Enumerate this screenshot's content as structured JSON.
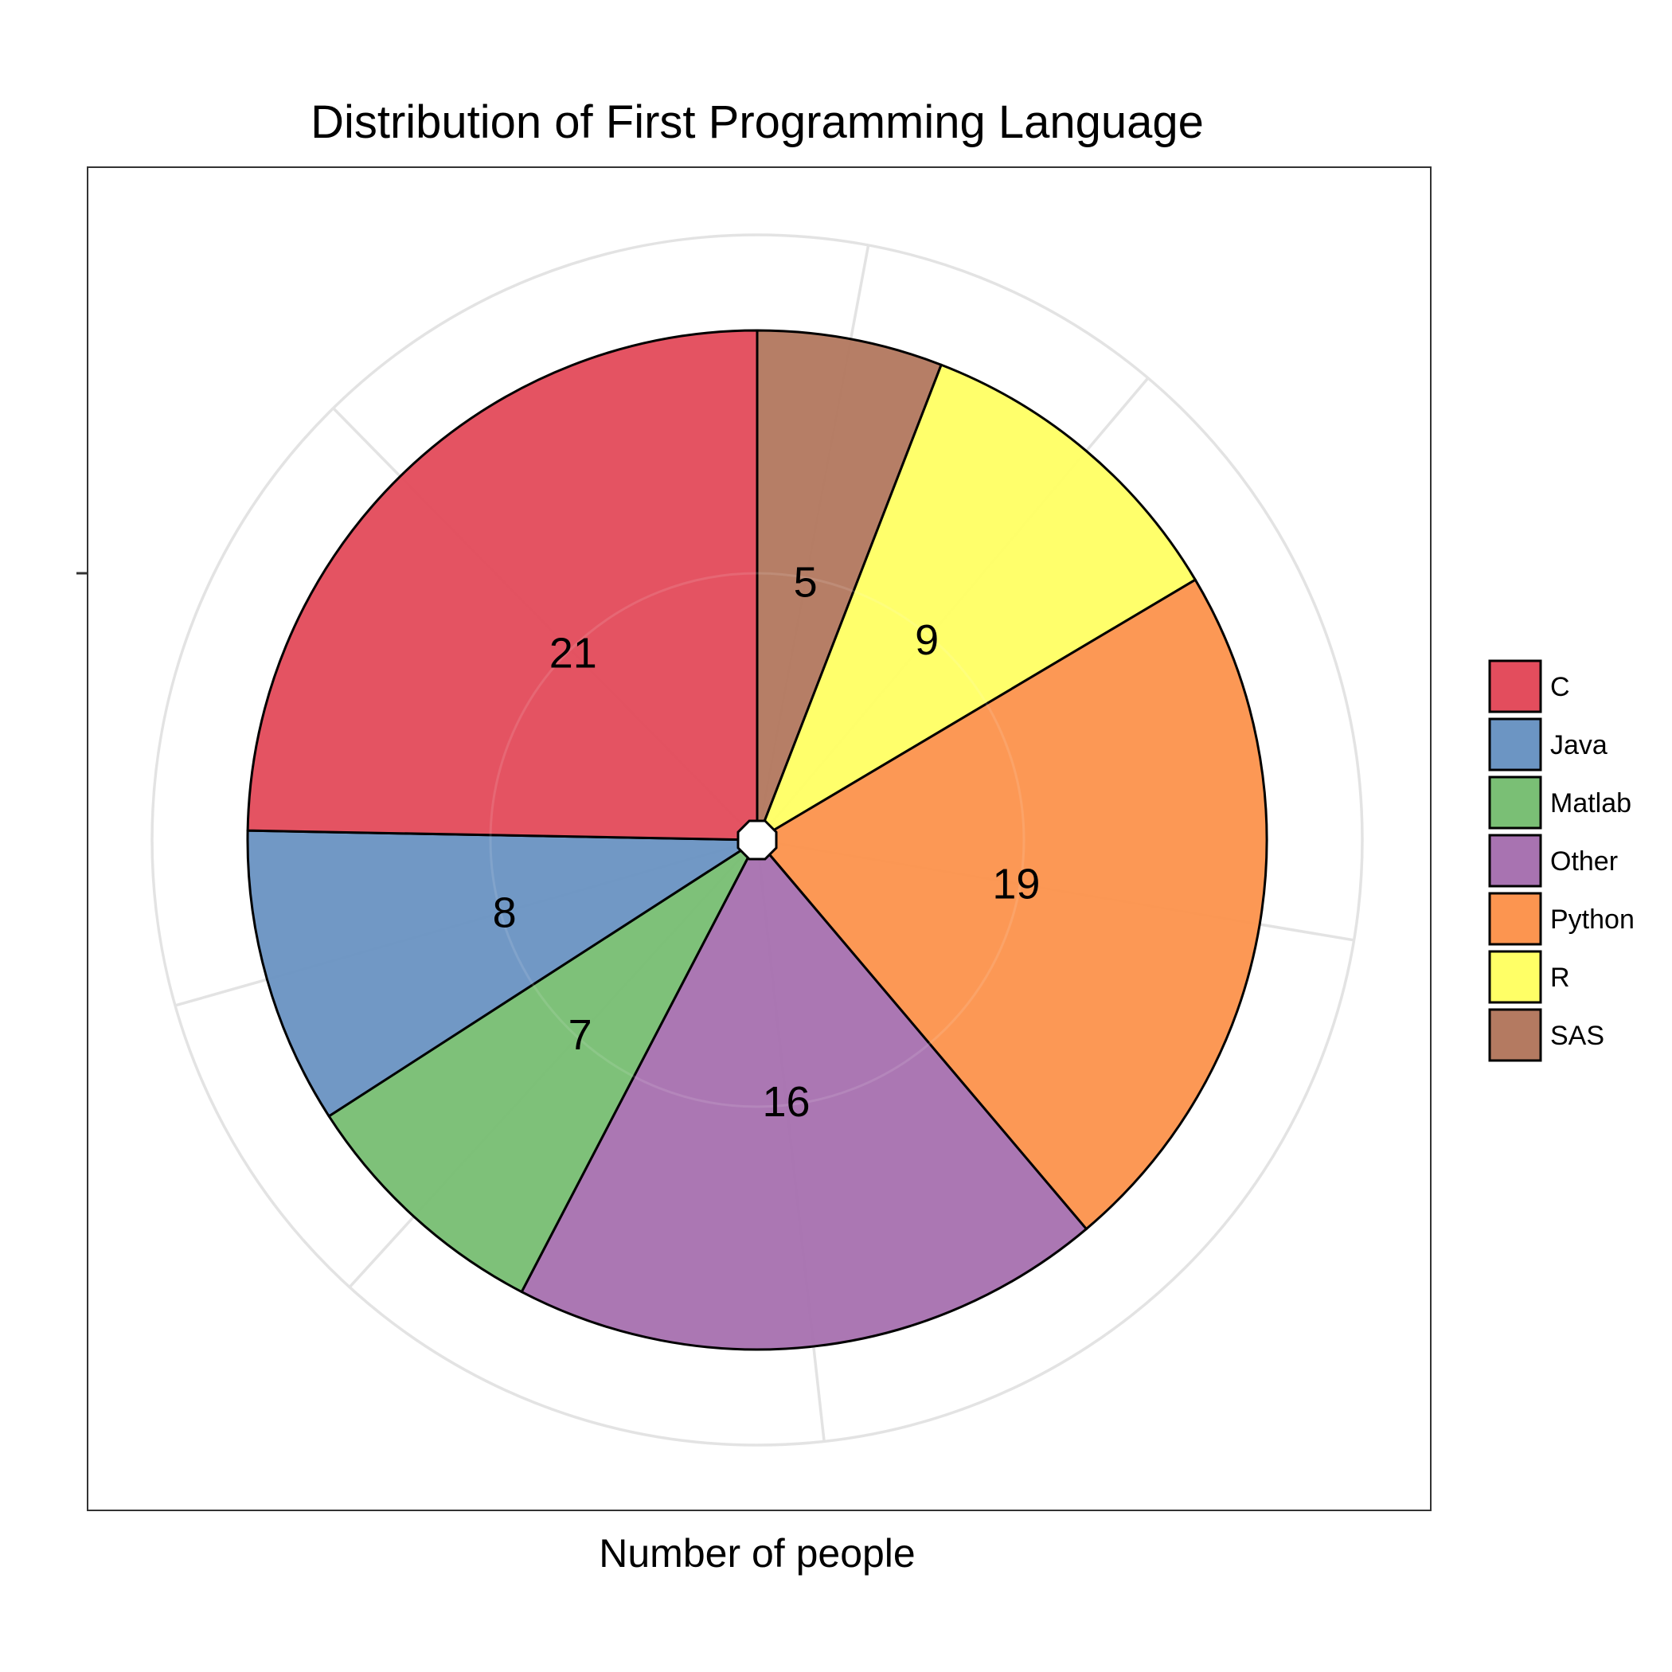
{
  "chart_data": {
    "type": "pie",
    "title": "Distribution of First Programming Language",
    "xlabel": "Number of people",
    "ylabel": "",
    "categories": [
      "SAS",
      "R",
      "Python",
      "Other",
      "Matlab",
      "Java",
      "C"
    ],
    "values": [
      5,
      9,
      19,
      16,
      7,
      8,
      21
    ],
    "colors": [
      "#b47a61",
      "#ffff66",
      "#fc9550",
      "#a873b1",
      "#7abf75",
      "#6c95c3",
      "#e34d5d"
    ],
    "legend": {
      "position": "right",
      "entries": [
        {
          "label": "C",
          "color": "#e34d5d"
        },
        {
          "label": "Java",
          "color": "#6c95c3"
        },
        {
          "label": "Matlab",
          "color": "#7abf75"
        },
        {
          "label": "Other",
          "color": "#a873b1"
        },
        {
          "label": "Python",
          "color": "#fc9550"
        },
        {
          "label": "R",
          "color": "#ffff66"
        },
        {
          "label": "SAS",
          "color": "#b47a61"
        }
      ]
    },
    "grid": true,
    "direction": "clockwise from top"
  }
}
